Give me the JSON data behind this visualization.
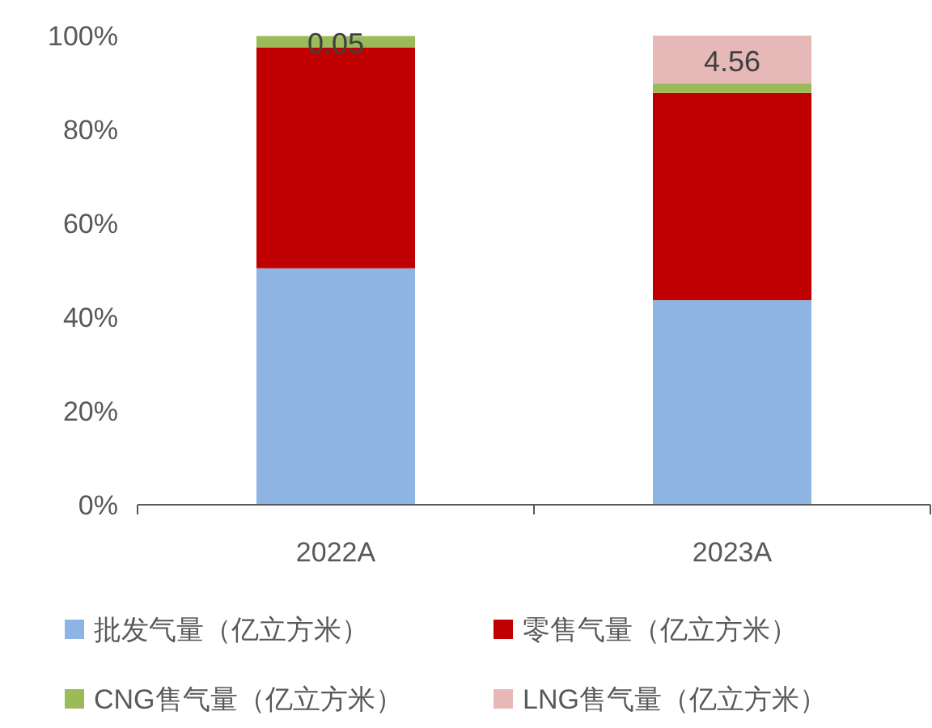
{
  "chart_data": {
    "type": "bar",
    "stacked": true,
    "categories": [
      "2022A",
      "2023A"
    ],
    "series": [
      {
        "name": "批发气量（亿立方米）",
        "color": "#8eb4e3",
        "values": [
          50.4,
          43.6
        ]
      },
      {
        "name": "零售气量（亿立方米）",
        "color": "#c00000",
        "values": [
          47.1,
          44.2
        ]
      },
      {
        "name": "CNG售气量（亿立方米）",
        "color": "#9bbb59",
        "values": [
          2.4,
          2.0
        ]
      },
      {
        "name": "LNG售气量（亿立方米）",
        "color": "#e6b9b8",
        "values": [
          null,
          10.2
        ]
      }
    ],
    "annotations": [
      "0.05",
      "4.56"
    ],
    "ylim": [
      0,
      100
    ],
    "yticks": [
      {
        "value": 0,
        "label": "0%"
      },
      {
        "value": 20,
        "label": "20%"
      },
      {
        "value": 40,
        "label": "40%"
      },
      {
        "value": 60,
        "label": "60%"
      },
      {
        "value": 80,
        "label": "80%"
      },
      {
        "value": 100,
        "label": "100%"
      }
    ],
    "grid": false,
    "legend": "bottom"
  }
}
